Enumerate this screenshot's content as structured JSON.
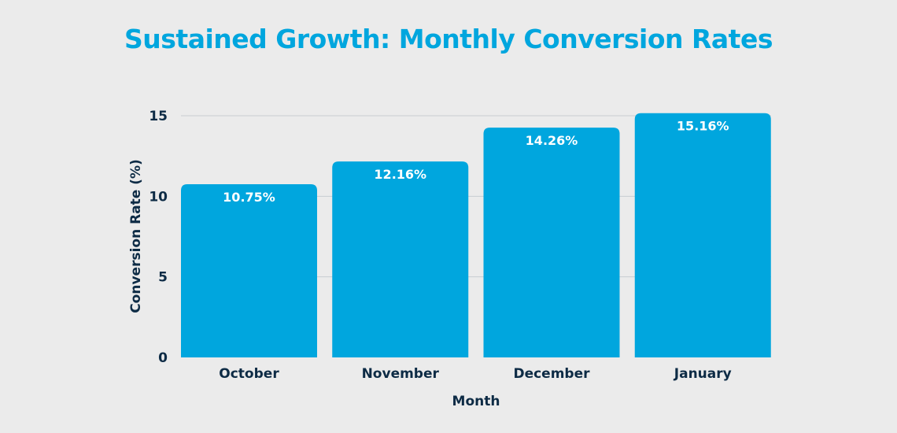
{
  "chart_data": {
    "type": "bar",
    "title": "Sustained Growth: Monthly Conversion Rates",
    "xlabel": "Month",
    "ylabel": "Conversion Rate (%)",
    "categories": [
      "October",
      "November",
      "December",
      "January"
    ],
    "values": [
      10.75,
      12.16,
      14.26,
      15.16
    ],
    "data_labels": [
      "10.75%",
      "12.16%",
      "14.26%",
      "15.16%"
    ],
    "ylim": [
      0,
      15.16
    ],
    "yticks": [
      0,
      5,
      10,
      15
    ],
    "grid": true,
    "colors": {
      "bar": "#00a6de",
      "title": "#00a6de",
      "text": "#0d2b45",
      "grid": "#c8ccd0",
      "background": "#ebebeb"
    }
  }
}
